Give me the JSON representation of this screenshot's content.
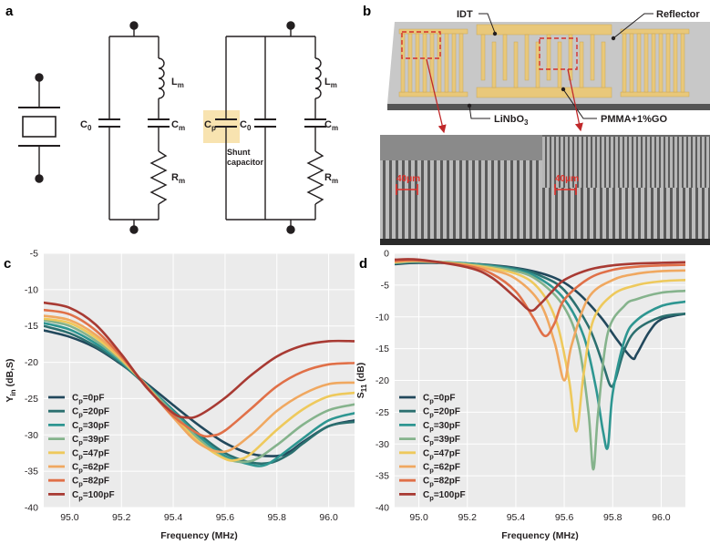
{
  "panels": {
    "a": {
      "letter": "a",
      "labels": {
        "c0": "C",
        "c0_sub": "0",
        "cm": "C",
        "cm_sub": "m",
        "lm": "L",
        "lm_sub": "m",
        "rm": "R",
        "rm_sub": "m",
        "cp": "C",
        "cp_sub": "p",
        "shunt_line1": "Shunt",
        "shunt_line2": "capacitor"
      }
    },
    "b": {
      "letter": "b",
      "labels": {
        "idt": "IDT",
        "reflector": "Reflector",
        "linbo3": "LiNbO",
        "linbo3_sub": "3",
        "pmma": "PMMA+1%GO",
        "scale1": "40μm",
        "scale2": "40μm"
      }
    }
  },
  "colors": {
    "electrode": "#e9c87a",
    "substrate": "#c6c6c6",
    "highlight": "#f8e3b0",
    "dashed": "#d6302a",
    "arrow": "#c0282a"
  },
  "chart_data": [
    {
      "panel": "c",
      "type": "line",
      "xlabel": "Frequency (MHz)",
      "ylabel": "Y",
      "ylabel_sub": "in",
      "ylabel_rest": " (dB,S)",
      "xlim": [
        94.9,
        96.1
      ],
      "ylim": [
        -40,
        -5
      ],
      "xticks": [
        "95.0",
        "95.2",
        "95.4",
        "95.6",
        "95.8",
        "96.0"
      ],
      "yticks": [
        "-5",
        "-10",
        "-15",
        "-20",
        "-25",
        "-30",
        "-35",
        "-40"
      ],
      "series": [
        {
          "name": "Cp=0pF",
          "label": "C",
          "sub": "p",
          "rest": "=0pF",
          "color": "#22485c",
          "x": [
            94.9,
            95.0,
            95.1,
            95.2,
            95.3,
            95.4,
            95.5,
            95.6,
            95.7,
            95.8,
            95.85,
            95.9,
            96.0,
            96.1
          ],
          "y": [
            -15.6,
            -16.5,
            -18.0,
            -20.3,
            -23.0,
            -25.9,
            -28.7,
            -31.1,
            -32.6,
            -32.9,
            -32.3,
            -31.0,
            -28.8,
            -28.0
          ]
        },
        {
          "name": "Cp=20pF",
          "label": "C",
          "sub": "p",
          "rest": "=20pF",
          "color": "#2b6f6f",
          "x": [
            94.9,
            95.0,
            95.1,
            95.2,
            95.3,
            95.4,
            95.5,
            95.6,
            95.7,
            95.78,
            95.85,
            95.9,
            96.0,
            96.1
          ],
          "y": [
            -15.0,
            -16.0,
            -17.8,
            -20.2,
            -23.3,
            -26.6,
            -29.9,
            -32.5,
            -33.8,
            -33.8,
            -32.6,
            -31.2,
            -28.8,
            -28.2
          ]
        },
        {
          "name": "Cp=30pF",
          "label": "C",
          "sub": "p",
          "rest": "=30pF",
          "color": "#2e9691",
          "x": [
            94.9,
            95.0,
            95.1,
            95.2,
            95.3,
            95.4,
            95.5,
            95.6,
            95.7,
            95.75,
            95.8,
            95.9,
            96.0,
            96.1
          ],
          "y": [
            -14.6,
            -15.5,
            -17.4,
            -20.0,
            -23.2,
            -26.7,
            -30.2,
            -32.9,
            -34.1,
            -34.2,
            -33.2,
            -30.5,
            -28.0,
            -27.0
          ]
        },
        {
          "name": "Cp=39pF",
          "label": "C",
          "sub": "p",
          "rest": "=39pF",
          "color": "#85b38c",
          "x": [
            94.9,
            95.0,
            95.1,
            95.2,
            95.3,
            95.4,
            95.5,
            95.6,
            95.7,
            95.8,
            95.9,
            96.0,
            96.1
          ],
          "y": [
            -14.2,
            -15.0,
            -17.0,
            -19.8,
            -23.3,
            -27.0,
            -30.6,
            -33.2,
            -33.6,
            -31.4,
            -28.6,
            -26.6,
            -25.8
          ]
        },
        {
          "name": "Cp=47pF",
          "label": "C",
          "sub": "p",
          "rest": "=47pF",
          "color": "#eec95c",
          "x": [
            94.9,
            95.0,
            95.1,
            95.2,
            95.3,
            95.4,
            95.5,
            95.6,
            95.65,
            95.7,
            95.8,
            95.9,
            96.0,
            96.1
          ],
          "y": [
            -14.0,
            -14.6,
            -16.6,
            -19.6,
            -23.4,
            -27.4,
            -31.0,
            -33.3,
            -33.4,
            -32.6,
            -29.3,
            -26.5,
            -24.7,
            -24.2
          ]
        },
        {
          "name": "Cp=62pF",
          "label": "C",
          "sub": "p",
          "rest": "=62pF",
          "color": "#f0a860",
          "x": [
            94.9,
            95.0,
            95.1,
            95.2,
            95.3,
            95.4,
            95.5,
            95.6,
            95.7,
            95.8,
            95.9,
            96.0,
            96.1
          ],
          "y": [
            -13.6,
            -14.2,
            -16.2,
            -19.4,
            -23.4,
            -27.6,
            -31.2,
            -32.3,
            -30.0,
            -26.7,
            -24.4,
            -23.0,
            -22.8
          ]
        },
        {
          "name": "Cp=82pF",
          "label": "C",
          "sub": "p",
          "rest": "=82pF",
          "color": "#e07048",
          "x": [
            94.9,
            95.0,
            95.1,
            95.2,
            95.3,
            95.4,
            95.5,
            95.55,
            95.6,
            95.7,
            95.8,
            95.9,
            96.0,
            96.1
          ],
          "y": [
            -12.8,
            -13.4,
            -15.6,
            -19.2,
            -23.5,
            -27.4,
            -29.9,
            -30.1,
            -29.4,
            -26.4,
            -23.3,
            -21.3,
            -20.3,
            -20.1
          ]
        },
        {
          "name": "Cp=100pF",
          "label": "C",
          "sub": "p",
          "rest": "=100pF",
          "color": "#a83a33",
          "x": [
            94.9,
            95.0,
            95.1,
            95.2,
            95.3,
            95.4,
            95.45,
            95.5,
            95.6,
            95.7,
            95.8,
            95.9,
            96.0,
            96.1
          ],
          "y": [
            -11.8,
            -12.5,
            -14.8,
            -18.9,
            -23.6,
            -27.0,
            -27.6,
            -27.3,
            -24.9,
            -21.8,
            -19.2,
            -17.7,
            -17.1,
            -17.1
          ]
        }
      ]
    },
    {
      "panel": "d",
      "type": "line",
      "xlabel": "Frequency (MHz)",
      "ylabel": "S",
      "ylabel_sub": "11",
      "ylabel_rest": " (dB)",
      "xlim": [
        94.9,
        96.1
      ],
      "ylim": [
        -40,
        0
      ],
      "xticks": [
        "95.0",
        "95.2",
        "95.4",
        "95.6",
        "95.8",
        "96.0"
      ],
      "yticks": [
        "0",
        "-5",
        "-10",
        "-15",
        "-20",
        "-25",
        "-30",
        "-35",
        "-40"
      ],
      "series": [
        {
          "name": "Cp=0pF",
          "label": "C",
          "sub": "p",
          "rest": "=0pF",
          "color": "#22485c",
          "x": [
            94.9,
            95.0,
            95.2,
            95.4,
            95.55,
            95.65,
            95.75,
            95.82,
            95.88,
            95.9,
            95.95,
            96.0,
            96.1
          ],
          "y": [
            -1.7,
            -1.5,
            -1.6,
            -2.3,
            -3.7,
            -6.0,
            -10.0,
            -13.7,
            -16.5,
            -15.8,
            -12.4,
            -10.4,
            -9.5
          ]
        },
        {
          "name": "Cp=20pF",
          "label": "C",
          "sub": "p",
          "rest": "=20pF",
          "color": "#2b6f6f",
          "x": [
            94.9,
            95.0,
            95.2,
            95.4,
            95.5,
            95.6,
            95.7,
            95.76,
            95.79,
            95.81,
            95.85,
            95.9,
            96.0,
            96.1
          ],
          "y": [
            -1.6,
            -1.4,
            -1.6,
            -2.4,
            -3.5,
            -5.8,
            -11.5,
            -17.5,
            -20.8,
            -20.0,
            -15.0,
            -12.0,
            -10.0,
            -9.5
          ]
        },
        {
          "name": "Cp=30pF",
          "label": "C",
          "sub": "p",
          "rest": "=30pF",
          "color": "#2e9691",
          "x": [
            94.9,
            95.0,
            95.2,
            95.4,
            95.5,
            95.6,
            95.68,
            95.73,
            95.76,
            95.78,
            95.8,
            95.85,
            95.9,
            96.0,
            96.1
          ],
          "y": [
            -1.5,
            -1.3,
            -1.6,
            -2.6,
            -4.0,
            -7.2,
            -13.0,
            -21.0,
            -28.0,
            -30.5,
            -22.0,
            -13.5,
            -10.5,
            -8.3,
            -7.6
          ]
        },
        {
          "name": "Cp=39pF",
          "label": "C",
          "sub": "p",
          "rest": "=39pF",
          "color": "#85b38c",
          "x": [
            94.9,
            95.0,
            95.2,
            95.4,
            95.5,
            95.6,
            95.66,
            95.7,
            95.72,
            95.74,
            95.78,
            95.85,
            95.9,
            96.0,
            96.1
          ],
          "y": [
            -1.5,
            -1.3,
            -1.7,
            -2.8,
            -4.5,
            -8.5,
            -14.5,
            -25.0,
            -34.0,
            -25.0,
            -12.5,
            -8.2,
            -7.2,
            -6.2,
            -5.9
          ]
        },
        {
          "name": "Cp=47pF",
          "label": "C",
          "sub": "p",
          "rest": "=47pF",
          "color": "#eec95c",
          "x": [
            94.9,
            95.0,
            95.2,
            95.4,
            95.5,
            95.57,
            95.62,
            95.65,
            95.68,
            95.72,
            95.8,
            95.9,
            96.0,
            96.1
          ],
          "y": [
            -1.4,
            -1.2,
            -1.8,
            -3.2,
            -5.8,
            -11.0,
            -20.0,
            -28.0,
            -19.0,
            -10.5,
            -6.5,
            -5.0,
            -4.4,
            -4.2
          ]
        },
        {
          "name": "Cp=62pF",
          "label": "C",
          "sub": "p",
          "rest": "=62pF",
          "color": "#f0a860",
          "x": [
            94.9,
            95.0,
            95.2,
            95.3,
            95.4,
            95.5,
            95.56,
            95.6,
            95.63,
            95.7,
            95.8,
            95.9,
            96.0,
            96.1
          ],
          "y": [
            -1.3,
            -1.2,
            -1.9,
            -2.6,
            -4.0,
            -7.8,
            -14.0,
            -20.0,
            -14.5,
            -7.0,
            -4.2,
            -3.2,
            -2.8,
            -2.7
          ]
        },
        {
          "name": "Cp=82pF",
          "label": "C",
          "sub": "p",
          "rest": "=82pF",
          "color": "#e07048",
          "x": [
            94.9,
            95.0,
            95.2,
            95.3,
            95.4,
            95.47,
            95.52,
            95.56,
            95.6,
            95.7,
            95.8,
            95.9,
            96.0,
            96.1
          ],
          "y": [
            -1.2,
            -1.1,
            -2.0,
            -3.2,
            -6.0,
            -10.0,
            -13.0,
            -11.0,
            -7.3,
            -4.0,
            -2.6,
            -2.1,
            -1.9,
            -1.8
          ]
        },
        {
          "name": "Cp=100pF",
          "label": "C",
          "sub": "p",
          "rest": "=100pF",
          "color": "#a83a33",
          "x": [
            94.9,
            95.0,
            95.2,
            95.3,
            95.4,
            95.46,
            95.5,
            95.55,
            95.6,
            95.7,
            95.8,
            95.9,
            96.0,
            96.1
          ],
          "y": [
            -1.0,
            -1.0,
            -2.2,
            -3.8,
            -7.0,
            -9.0,
            -8.0,
            -6.0,
            -4.2,
            -2.6,
            -1.9,
            -1.6,
            -1.5,
            -1.4
          ]
        }
      ]
    }
  ]
}
